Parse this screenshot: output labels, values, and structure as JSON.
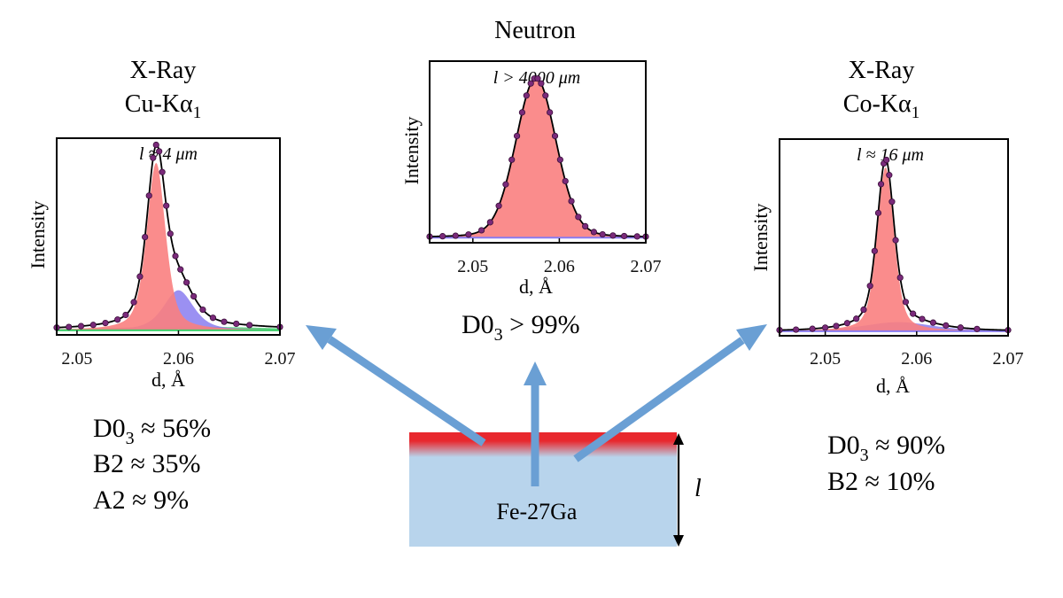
{
  "colors": {
    "d03_fill": "#f97f7f",
    "b2_fill": "#8a7cf0",
    "a2_fill": "#3fcf6a",
    "fit_line": "#000000",
    "data_point": "#7a2a7a",
    "arrow": "#6a9fd4",
    "sample_body": "#b8d4ec",
    "sample_surface": "#e8282e"
  },
  "icons": {
    "arrowhead": "arrowhead-icon"
  },
  "sample": {
    "label": "Fe-27Ga",
    "depth_label": "l"
  },
  "chart_data": [
    {
      "type": "area",
      "id": "cu",
      "title_line1": "X-Ray",
      "title_line2": "Cu-Kα",
      "title_sub": "1",
      "ylabel": "Intensity",
      "xlabel": "d, Å",
      "annotation": "l ≈ 4 μm",
      "xlim": [
        2.048,
        2.07
      ],
      "ylim": [
        0,
        1.08
      ],
      "xticks": [
        "2.05",
        "2.06",
        "2.07"
      ],
      "xtick_values": [
        2.05,
        2.06,
        2.07
      ],
      "series": [
        {
          "name": "D0₃",
          "shape": "pseudo-voigt",
          "center": 2.0578,
          "amplitude": 0.92,
          "fwhm": 0.0022,
          "eta": 0.5
        },
        {
          "name": "B2",
          "shape": "pseudo-voigt",
          "center": 2.06,
          "amplitude": 0.22,
          "fwhm": 0.0035,
          "eta": 0.55
        },
        {
          "name": "A2",
          "shape": "pseudo-voigt",
          "center": 2.061,
          "amplitude": 0.02,
          "fwhm": 0.02,
          "eta": 0.5
        }
      ],
      "background": 0.025,
      "data_points_x": [
        2.048,
        2.0492,
        2.0504,
        2.0516,
        2.0528,
        2.054,
        2.0548,
        2.0556,
        2.0562,
        2.0567,
        2.0571,
        2.0575,
        2.0578,
        2.0581,
        2.0584,
        2.0588,
        2.0592,
        2.0597,
        2.0602,
        2.0608,
        2.0615,
        2.0624,
        2.0634,
        2.0645,
        2.0657,
        2.067,
        2.07
      ],
      "composition": [
        "D0",
        "3",
        " ≈ 56%",
        "B2 ≈ 35%",
        "A2 ≈ 9%"
      ]
    },
    {
      "type": "area",
      "id": "neutron",
      "title_line1": "Neutron",
      "ylabel": "Intensity",
      "xlabel": "d, Å",
      "annotation": "l > 4000 μm",
      "xlim": [
        2.045,
        2.07
      ],
      "ylim": [
        0,
        1.08
      ],
      "xticks": [
        "2.05",
        "2.06",
        "2.07"
      ],
      "xtick_values": [
        2.05,
        2.06,
        2.07
      ],
      "series": [
        {
          "name": "D0₃",
          "shape": "pseudo-voigt",
          "center": 2.0573,
          "amplitude": 0.95,
          "fwhm": 0.0055,
          "eta": 0.15
        }
      ],
      "background": 0.03,
      "data_points_x": [
        2.045,
        2.0465,
        2.048,
        2.0495,
        2.051,
        2.052,
        2.053,
        2.0538,
        2.0545,
        2.0551,
        2.0557,
        2.0562,
        2.0567,
        2.0571,
        2.0575,
        2.0579,
        2.0584,
        2.0589,
        2.0595,
        2.0601,
        2.0607,
        2.0614,
        2.0622,
        2.063,
        2.064,
        2.065,
        2.0662,
        2.0675,
        2.069,
        2.07
      ],
      "composition": [
        "D0",
        "3",
        " > 99%"
      ]
    },
    {
      "type": "area",
      "id": "co",
      "title_line1": "X-Ray",
      "title_line2": "Co-Kα",
      "title_sub": "1",
      "ylabel": "Intensity",
      "xlabel": "d, Å",
      "annotation": "l ≈ 16 μm",
      "xlim": [
        2.045,
        2.07
      ],
      "ylim": [
        0,
        1.08
      ],
      "xticks": [
        "2.05",
        "2.06",
        "2.07"
      ],
      "xtick_values": [
        2.05,
        2.06,
        2.07
      ],
      "series": [
        {
          "name": "D0₃",
          "shape": "pseudo-voigt",
          "center": 2.0566,
          "amplitude": 0.9,
          "fwhm": 0.0022,
          "eta": 0.45
        },
        {
          "name": "B2",
          "shape": "pseudo-voigt",
          "center": 2.058,
          "amplitude": 0.05,
          "fwhm": 0.009,
          "eta": 0.5
        }
      ],
      "background": 0.025,
      "data_points_x": [
        2.045,
        2.0468,
        2.0486,
        2.05,
        2.0512,
        2.0524,
        2.0534,
        2.0542,
        2.0549,
        2.0554,
        2.0558,
        2.0561,
        2.0564,
        2.0567,
        2.057,
        2.0573,
        2.0577,
        2.0582,
        2.0588,
        2.0596,
        2.0606,
        2.0618,
        2.0632,
        2.0648,
        2.0666,
        2.07
      ],
      "composition": [
        "D0",
        "3",
        " ≈ 90%",
        "B2 ≈ 10%"
      ]
    }
  ]
}
